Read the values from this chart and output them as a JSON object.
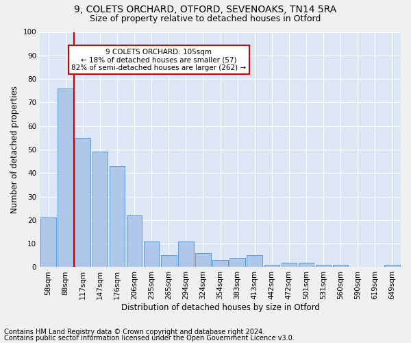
{
  "title1": "9, COLETS ORCHARD, OTFORD, SEVENOAKS, TN14 5RA",
  "title2": "Size of property relative to detached houses in Otford",
  "xlabel": "Distribution of detached houses by size in Otford",
  "ylabel": "Number of detached properties",
  "categories": [
    "58sqm",
    "88sqm",
    "117sqm",
    "147sqm",
    "176sqm",
    "206sqm",
    "235sqm",
    "265sqm",
    "294sqm",
    "324sqm",
    "354sqm",
    "383sqm",
    "413sqm",
    "442sqm",
    "472sqm",
    "501sqm",
    "531sqm",
    "560sqm",
    "590sqm",
    "619sqm",
    "649sqm"
  ],
  "values": [
    21,
    76,
    55,
    49,
    43,
    22,
    11,
    5,
    11,
    6,
    3,
    4,
    5,
    1,
    2,
    2,
    1,
    1,
    0,
    0,
    1
  ],
  "bar_color": "#aec6e8",
  "bar_edge_color": "#5b9bd5",
  "bg_color": "#dce6f5",
  "grid_color": "#ffffff",
  "marker_label": "9 COLETS ORCHARD: 105sqm",
  "marker_line1": "← 18% of detached houses are smaller (57)",
  "marker_line2": "82% of semi-detached houses are larger (262) →",
  "annotation_box_color": "#ffffff",
  "annotation_border_color": "#cc0000",
  "marker_line_color": "#cc0000",
  "footnote1": "Contains HM Land Registry data © Crown copyright and database right 2024.",
  "footnote2": "Contains public sector information licensed under the Open Government Licence v3.0.",
  "ylim": [
    0,
    100
  ],
  "title1_fontsize": 10,
  "title2_fontsize": 9,
  "axis_label_fontsize": 8.5,
  "tick_fontsize": 7.5,
  "footnote_fontsize": 7
}
